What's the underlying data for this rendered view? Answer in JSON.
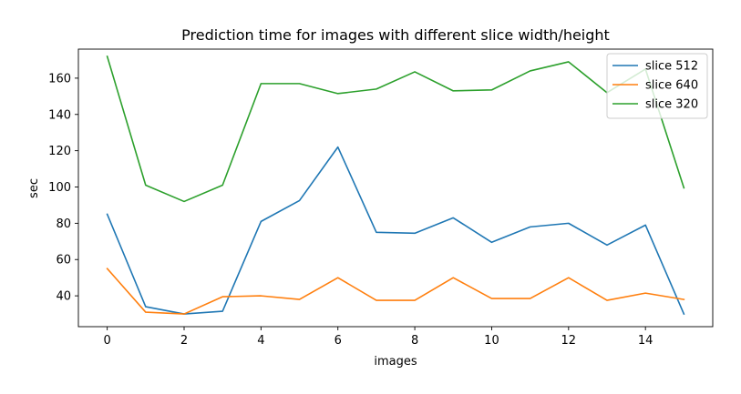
{
  "chart_data": {
    "type": "line",
    "title": "Prediction time for images with different slice width/height",
    "xlabel": "images",
    "ylabel": "sec",
    "xlim": [
      -0.75,
      15.75
    ],
    "ylim": [
      23,
      176
    ],
    "xticks": [
      0,
      2,
      4,
      6,
      8,
      10,
      12,
      14
    ],
    "yticks": [
      40,
      60,
      80,
      100,
      120,
      140,
      160
    ],
    "grid": false,
    "legend_position": "top-right",
    "x": [
      0,
      1,
      2,
      3,
      4,
      5,
      6,
      7,
      8,
      9,
      10,
      11,
      12,
      13,
      14,
      15
    ],
    "series": [
      {
        "name": "slice 512",
        "color": "#1f77b4",
        "values": [
          85,
          34,
          30,
          31.5,
          81,
          92.5,
          122,
          75,
          74.5,
          83,
          69.5,
          78,
          80,
          68,
          79,
          30
        ]
      },
      {
        "name": "slice 640",
        "color": "#ff7f0e",
        "values": [
          55,
          31,
          30,
          39.5,
          40,
          38,
          50,
          37.5,
          37.5,
          50,
          38.5,
          38.5,
          50,
          37.5,
          41.5,
          38
        ]
      },
      {
        "name": "slice 320",
        "color": "#2ca02c",
        "values": [
          172,
          101,
          92,
          101,
          157,
          157,
          151.5,
          154,
          163.5,
          153,
          153.5,
          164,
          169,
          152,
          165,
          99.5
        ]
      }
    ]
  }
}
